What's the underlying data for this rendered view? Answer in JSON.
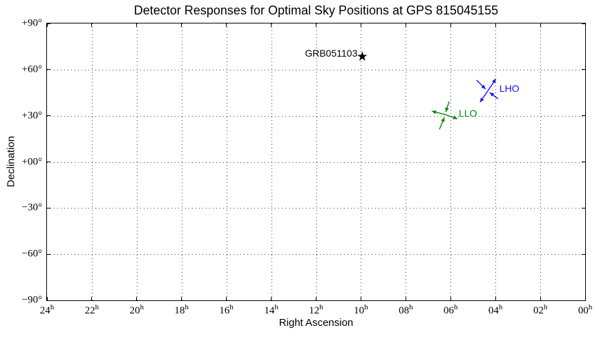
{
  "chart_data": {
    "type": "scatter",
    "title": "Detector Responses for Optimal Sky Positions at GPS 815045155",
    "xlabel": "Right Ascension",
    "ylabel": "Declination",
    "grid": "dotted",
    "x_axis": {
      "lim": [
        24,
        0
      ],
      "unit_suffix": "h",
      "ticks": [
        {
          "ra": 24,
          "label": "24"
        },
        {
          "ra": 22,
          "label": "22"
        },
        {
          "ra": 20,
          "label": "20"
        },
        {
          "ra": 18,
          "label": "18"
        },
        {
          "ra": 16,
          "label": "16"
        },
        {
          "ra": 14,
          "label": "14"
        },
        {
          "ra": 12,
          "label": "12"
        },
        {
          "ra": 10,
          "label": "10"
        },
        {
          "ra": 8,
          "label": "08"
        },
        {
          "ra": 6,
          "label": "06"
        },
        {
          "ra": 4,
          "label": "04"
        },
        {
          "ra": 2,
          "label": "02"
        },
        {
          "ra": 0,
          "label": "00"
        }
      ]
    },
    "y_axis": {
      "lim": [
        -90,
        90
      ],
      "ticks": [
        {
          "dec": 90,
          "label": "+90°"
        },
        {
          "dec": 60,
          "label": "+60°"
        },
        {
          "dec": 30,
          "label": "+30°"
        },
        {
          "dec": 0,
          "label": "+00°"
        },
        {
          "dec": -30,
          "label": "−30°"
        },
        {
          "dec": -60,
          "label": "−60°"
        },
        {
          "dec": -90,
          "label": "−90°"
        }
      ]
    },
    "points": [
      {
        "name": "GRB051103",
        "ra_h": 9.94,
        "dec_deg": 68.5,
        "marker": "star",
        "color": "#000000",
        "label_offset": [
          -7,
          -5
        ],
        "label_align": "right"
      }
    ],
    "detectors": [
      {
        "name": "LHO",
        "color": "#1515ef",
        "ra_h": 4.35,
        "dec_deg": 46.0,
        "label_offset": [
          17,
          -4
        ],
        "arrows": [
          {
            "from": [
              -16,
              -16
            ],
            "to": [
              -3,
              -3
            ]
          },
          {
            "from": [
              15,
              11
            ],
            "to": [
              3,
              2
            ]
          },
          {
            "from": [
              0,
              0
            ],
            "to": [
              12,
              -18
            ]
          },
          {
            "from": [
              0,
              0
            ],
            "to": [
              -11,
              16
            ]
          }
        ]
      },
      {
        "name": "LLO",
        "color": "#048404",
        "ra_h": 6.22,
        "dec_deg": 30.7,
        "label_offset": [
          19,
          -2
        ],
        "arrows": [
          {
            "from": [
              5,
              -19
            ],
            "to": [
              0,
              -4
            ]
          },
          {
            "from": [
              -9,
              21
            ],
            "to": [
              -2,
              4
            ]
          },
          {
            "from": [
              0,
              0
            ],
            "to": [
              -20,
              -5
            ]
          },
          {
            "from": [
              0,
              0
            ],
            "to": [
              17,
              6
            ]
          }
        ]
      }
    ]
  }
}
